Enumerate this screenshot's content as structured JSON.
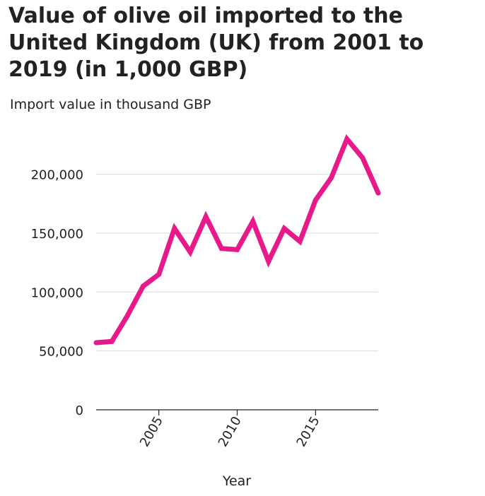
{
  "chart_data": {
    "type": "line",
    "title": "Value of olive oil imported to the United Kingdom (UK) from 2001 to 2019 (in 1,000 GBP)",
    "xlabel": "Year",
    "ylabel": "Import value in thousand GBP",
    "xlim": [
      2001,
      2019
    ],
    "ylim": [
      0,
      240000
    ],
    "xticks": [
      2005,
      2010,
      2015
    ],
    "yticks": [
      0,
      50000,
      100000,
      150000,
      200000
    ],
    "xtick_labels": [
      "2005",
      "2010",
      "2015"
    ],
    "ytick_labels": [
      "0",
      "50,000",
      "100,000",
      "150,000",
      "200,000"
    ],
    "grid": "horizontal",
    "series": [
      {
        "color": "#e8198b",
        "x": [
          2001,
          2002,
          2003,
          2004,
          2005,
          2006,
          2007,
          2008,
          2009,
          2010,
          2011,
          2012,
          2013,
          2014,
          2015,
          2016,
          2017,
          2018,
          2019
        ],
        "y": [
          57000,
          58000,
          80000,
          105000,
          115000,
          154000,
          134000,
          164000,
          137000,
          136000,
          160000,
          126000,
          154000,
          143000,
          178000,
          197000,
          230000,
          214000,
          184000
        ]
      }
    ]
  }
}
